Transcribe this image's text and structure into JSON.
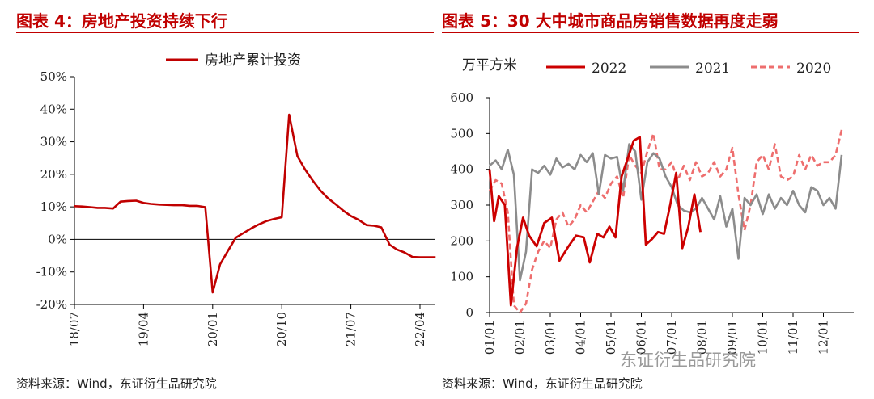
{
  "left": {
    "title": "图表 4：房地产投资持续下行",
    "source": "资料来源：Wind，东证衍生品研究院"
  },
  "right": {
    "title": "图表 5：30 大中城市商品房销售数据再度走弱",
    "source": "资料来源：Wind，东证衍生品研究院"
  },
  "watermark": "东证衍生品研究院",
  "colors": {
    "accent": "#c00000",
    "series_2022": "#cc0000",
    "series_2021": "#8c8c8c",
    "series_2020": "#ee6e6e"
  },
  "chart_data": [
    {
      "type": "line",
      "title": "",
      "xlabel": "",
      "ylabel": "",
      "ylim": [
        -20,
        50
      ],
      "yticks": [
        -20,
        -10,
        0,
        10,
        20,
        30,
        40,
        50
      ],
      "ytick_labels": [
        "-20%",
        "-10%",
        "0%",
        "10%",
        "20%",
        "30%",
        "40%",
        "50%"
      ],
      "xrange": [
        2018.5,
        2022.417
      ],
      "xticks": [
        2018.5,
        2019.25,
        2020.0,
        2020.75,
        2021.5,
        2022.25
      ],
      "xtick_labels": [
        "18/07",
        "19/04",
        "20/01",
        "20/10",
        "21/07",
        "22/04"
      ],
      "legend": "top-center",
      "series": [
        {
          "name": "房地产累计投资",
          "x": [
            2018.5,
            2018.58,
            2018.67,
            2018.75,
            2018.83,
            2018.92,
            2019.0,
            2019.08,
            2019.17,
            2019.25,
            2019.33,
            2019.42,
            2019.5,
            2019.58,
            2019.67,
            2019.75,
            2019.83,
            2019.92,
            2020.0,
            2020.08,
            2020.17,
            2020.25,
            2020.33,
            2020.42,
            2020.5,
            2020.58,
            2020.67,
            2020.75,
            2020.83,
            2020.92,
            2021.0,
            2021.08,
            2021.17,
            2021.25,
            2021.33,
            2021.42,
            2021.5,
            2021.58,
            2021.67,
            2021.75,
            2021.83,
            2021.92,
            2022.0,
            2022.08,
            2022.17,
            2022.25,
            2022.33,
            2022.42
          ],
          "y": [
            10.2,
            10.1,
            9.9,
            9.7,
            9.7,
            9.5,
            11.6,
            11.8,
            11.9,
            11.2,
            10.9,
            10.7,
            10.6,
            10.5,
            10.5,
            10.3,
            10.3,
            9.9,
            -16.3,
            -7.7,
            -3.3,
            0.5,
            1.9,
            3.4,
            4.6,
            5.6,
            6.3,
            6.8,
            38.3,
            25.6,
            21.6,
            18.3,
            15.0,
            12.7,
            10.9,
            8.8,
            7.2,
            6.1,
            4.4,
            4.2,
            3.7,
            -1.6,
            -3.1,
            -4.0,
            -5.4,
            -5.5,
            -5.5,
            -5.5
          ]
        }
      ]
    },
    {
      "type": "line",
      "title": "",
      "xlabel": "",
      "ylabel": "万平方米",
      "ylim": [
        0,
        600
      ],
      "yticks": [
        0,
        100,
        200,
        300,
        400,
        500,
        600
      ],
      "ytick_labels": [
        "0",
        "100",
        "200",
        "300",
        "400",
        "500",
        "600"
      ],
      "xrange": [
        0,
        12
      ],
      "xticks": [
        0,
        1,
        2,
        3,
        4,
        5,
        6,
        7,
        8,
        9,
        10,
        11
      ],
      "xtick_labels": [
        "01/01",
        "02/01",
        "03/01",
        "04/01",
        "05/01",
        "06/01",
        "07/01",
        "08/01",
        "09/01",
        "10/01",
        "11/01",
        "12/01"
      ],
      "legend": "top",
      "series": [
        {
          "name": "2022",
          "x": [
            0,
            0.15,
            0.3,
            0.5,
            0.7,
            0.9,
            1.1,
            1.3,
            1.55,
            1.8,
            2.05,
            2.3,
            2.6,
            2.85,
            3.1,
            3.3,
            3.55,
            3.75,
            3.95,
            4.15,
            4.35,
            4.55,
            4.75,
            4.95,
            5.15,
            5.35,
            5.55,
            5.75,
            5.95,
            6.15,
            6.35,
            6.55,
            6.75,
            6.95
          ],
          "y": [
            400,
            255,
            325,
            300,
            20,
            180,
            265,
            215,
            185,
            250,
            265,
            145,
            185,
            215,
            210,
            140,
            220,
            210,
            240,
            210,
            380,
            430,
            480,
            490,
            190,
            205,
            225,
            220,
            300,
            390,
            180,
            240,
            330,
            225
          ],
          "dash": false
        },
        {
          "name": "2021",
          "x": [
            0,
            0.2,
            0.4,
            0.6,
            0.8,
            1.0,
            1.2,
            1.4,
            1.6,
            1.8,
            2.0,
            2.2,
            2.4,
            2.6,
            2.8,
            3.0,
            3.2,
            3.4,
            3.6,
            3.8,
            4.0,
            4.2,
            4.4,
            4.6,
            4.8,
            5.0,
            5.2,
            5.4,
            5.6,
            5.8,
            6.0,
            6.2,
            6.4,
            6.6,
            6.8,
            7.0,
            7.2,
            7.4,
            7.6,
            7.8,
            8.0,
            8.2,
            8.4,
            8.6,
            8.8,
            9.0,
            9.2,
            9.4,
            9.6,
            9.8,
            10.0,
            10.2,
            10.4,
            10.6,
            10.8,
            11.0,
            11.2,
            11.4,
            11.6
          ],
          "y": [
            410,
            425,
            400,
            455,
            385,
            90,
            170,
            400,
            390,
            410,
            385,
            430,
            405,
            415,
            400,
            440,
            420,
            445,
            330,
            440,
            430,
            435,
            340,
            470,
            450,
            315,
            420,
            445,
            430,
            380,
            350,
            300,
            285,
            280,
            290,
            320,
            290,
            260,
            325,
            240,
            290,
            150,
            320,
            300,
            330,
            275,
            330,
            290,
            320,
            300,
            340,
            300,
            280,
            350,
            340,
            300,
            320,
            290,
            440
          ],
          "dash": false
        },
        {
          "name": "2020",
          "x": [
            0,
            0.2,
            0.4,
            0.6,
            0.8,
            1.0,
            1.2,
            1.4,
            1.6,
            1.8,
            2.0,
            2.2,
            2.4,
            2.6,
            2.8,
            3.0,
            3.2,
            3.4,
            3.6,
            3.8,
            4.0,
            4.2,
            4.4,
            4.6,
            4.8,
            5.0,
            5.2,
            5.4,
            5.6,
            5.8,
            6.0,
            6.2,
            6.4,
            6.6,
            6.8,
            7.0,
            7.2,
            7.4,
            7.6,
            7.8,
            8.0,
            8.2,
            8.4,
            8.6,
            8.8,
            9.0,
            9.2,
            9.4,
            9.6,
            9.8,
            10.0,
            10.2,
            10.4,
            10.6,
            10.8,
            11.0,
            11.2,
            11.4,
            11.6
          ],
          "y": [
            340,
            370,
            360,
            280,
            20,
            0,
            25,
            120,
            170,
            200,
            180,
            260,
            280,
            240,
            260,
            300,
            280,
            310,
            340,
            320,
            360,
            380,
            320,
            440,
            410,
            390,
            450,
            500,
            400,
            400,
            420,
            370,
            410,
            370,
            420,
            380,
            390,
            420,
            380,
            400,
            460,
            330,
            230,
            300,
            420,
            440,
            400,
            470,
            380,
            370,
            380,
            440,
            400,
            440,
            410,
            420,
            420,
            440,
            510
          ],
          "dash": true
        }
      ]
    }
  ]
}
